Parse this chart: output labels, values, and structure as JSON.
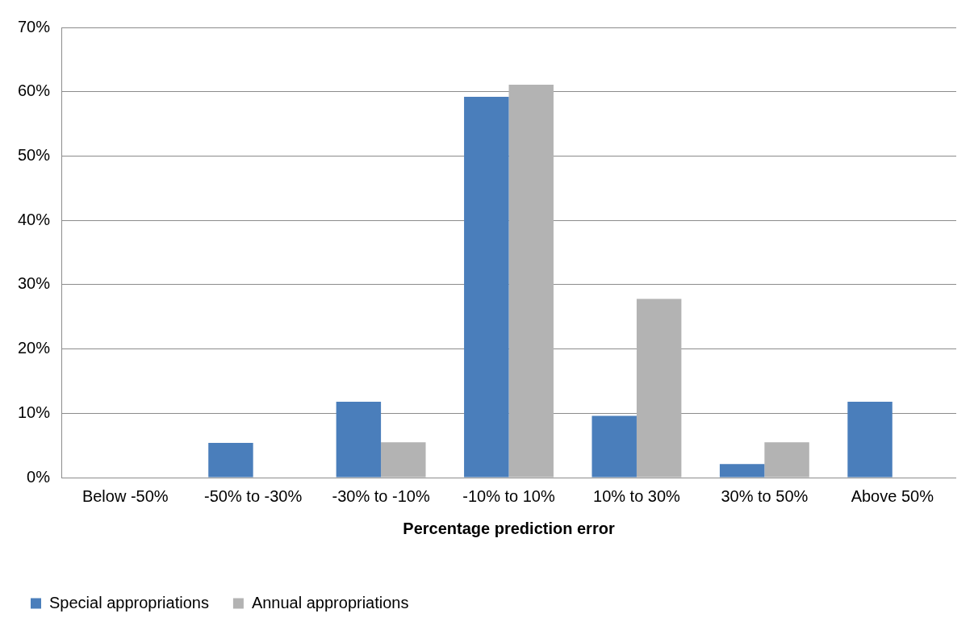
{
  "chart_data": {
    "type": "bar",
    "xlabel": "Percentage prediction error",
    "categories": [
      "Below -50%",
      "-50% to -30%",
      "-30% to -10%",
      "-10% to 10%",
      "10% to 30%",
      "30% to 50%",
      "Above 50%"
    ],
    "series": [
      {
        "name": "Special appropriations",
        "color": "#4a7ebb",
        "values": [
          0,
          5.4,
          11.8,
          59.2,
          9.6,
          2.1,
          11.8
        ]
      },
      {
        "name": "Annual appropriations",
        "color": "#b3b3b3",
        "values": [
          0,
          0,
          5.5,
          61.1,
          27.8,
          5.5,
          0
        ]
      }
    ],
    "ylim": [
      0,
      70
    ],
    "yticks": [
      {
        "value": 0,
        "label": "0%"
      },
      {
        "value": 10,
        "label": "10%"
      },
      {
        "value": 20,
        "label": "20%"
      },
      {
        "value": 30,
        "label": "30%"
      },
      {
        "value": 40,
        "label": "40%"
      },
      {
        "value": 50,
        "label": "50%"
      },
      {
        "value": 60,
        "label": "60%"
      },
      {
        "value": 70,
        "label": "70%"
      }
    ],
    "grid": "y",
    "legend": "bottom left"
  }
}
